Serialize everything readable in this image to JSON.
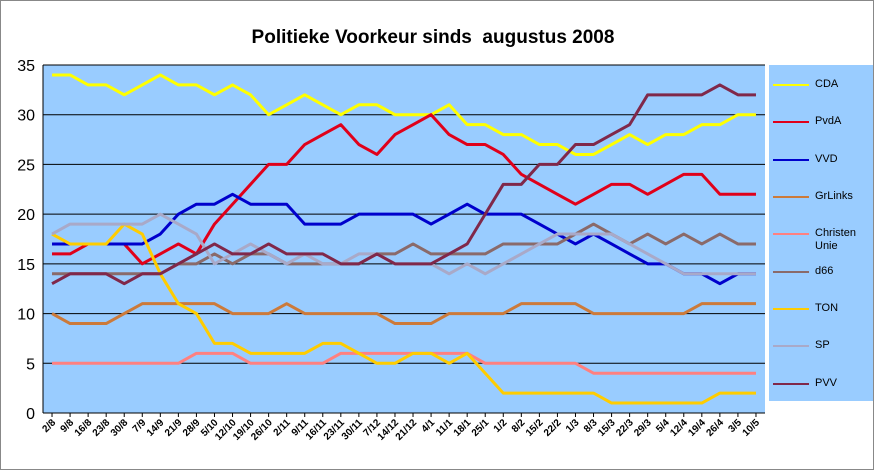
{
  "chart_data": {
    "type": "line",
    "title": "Politieke Voorkeur sinds  augustus 2008",
    "categories": [
      "2/8",
      "9/8",
      "16/8",
      "23/8",
      "30/8",
      "7/9",
      "14/9",
      "21/9",
      "28/9",
      "5/10",
      "12/10",
      "19/10",
      "26/10",
      "2/11",
      "9/11",
      "16/11",
      "23/11",
      "30/11",
      "7/12",
      "14/12",
      "21/12",
      "4/1",
      "11/1",
      "18/1",
      "25/1",
      "1/2",
      "8/2",
      "15/2",
      "22/2",
      "1/3",
      "8/3",
      "15/3",
      "22/3",
      "29/3",
      "5/4",
      "12/4",
      "19/4",
      "26/4",
      "3/5",
      "10/5"
    ],
    "series": [
      {
        "name": "CDA",
        "color": "#ffff00",
        "values": [
          34,
          34,
          33,
          33,
          32,
          33,
          34,
          33,
          33,
          32,
          33,
          32,
          30,
          31,
          32,
          31,
          30,
          31,
          31,
          30,
          30,
          30,
          31,
          29,
          29,
          28,
          28,
          27,
          27,
          26,
          26,
          27,
          28,
          27,
          28,
          28,
          29,
          29,
          30,
          30
        ]
      },
      {
        "name": "PvdA",
        "color": "#e0001a",
        "values": [
          16,
          16,
          17,
          17,
          17,
          15,
          16,
          17,
          16,
          19,
          21,
          23,
          25,
          25,
          27,
          28,
          29,
          27,
          26,
          28,
          29,
          30,
          28,
          27,
          27,
          26,
          24,
          23,
          22,
          21,
          22,
          23,
          23,
          22,
          23,
          24,
          24,
          22,
          22,
          22
        ]
      },
      {
        "name": "VVD",
        "color": "#0000cc",
        "values": [
          17,
          17,
          17,
          17,
          17,
          17,
          18,
          20,
          21,
          21,
          22,
          21,
          21,
          21,
          19,
          19,
          19,
          20,
          20,
          20,
          20,
          19,
          20,
          21,
          20,
          20,
          20,
          19,
          18,
          17,
          18,
          17,
          16,
          15,
          15,
          14,
          14,
          13,
          14,
          14
        ]
      },
      {
        "name": "GrLinks",
        "color": "#cc7a3a",
        "values": [
          10,
          9,
          9,
          9,
          10,
          11,
          11,
          11,
          11,
          11,
          10,
          10,
          10,
          11,
          10,
          10,
          10,
          10,
          10,
          9,
          9,
          9,
          10,
          10,
          10,
          10,
          11,
          11,
          11,
          11,
          10,
          10,
          10,
          10,
          10,
          10,
          11,
          11,
          11,
          11
        ]
      },
      {
        "name": "Christen Unie",
        "color": "#ff8080",
        "values": [
          5,
          5,
          5,
          5,
          5,
          5,
          5,
          5,
          6,
          6,
          6,
          5,
          5,
          5,
          5,
          5,
          6,
          6,
          6,
          6,
          6,
          6,
          6,
          6,
          5,
          5,
          5,
          5,
          5,
          5,
          4,
          4,
          4,
          4,
          4,
          4,
          4,
          4,
          4,
          4
        ]
      },
      {
        "name": "d66",
        "color": "#8a6a6a",
        "values": [
          14,
          14,
          14,
          14,
          14,
          14,
          14,
          15,
          15,
          16,
          15,
          16,
          16,
          15,
          15,
          15,
          15,
          15,
          16,
          16,
          17,
          16,
          16,
          16,
          16,
          17,
          17,
          17,
          17,
          18,
          19,
          18,
          17,
          18,
          17,
          18,
          17,
          18,
          17,
          17
        ]
      },
      {
        "name": "TON",
        "color": "#ffcc00",
        "values": [
          18,
          17,
          17,
          17,
          19,
          18,
          14,
          11,
          10,
          7,
          7,
          6,
          6,
          6,
          6,
          7,
          7,
          6,
          5,
          5,
          6,
          6,
          5,
          6,
          4,
          2,
          2,
          2,
          2,
          2,
          2,
          1,
          1,
          1,
          1,
          1,
          1,
          2,
          2,
          2
        ]
      },
      {
        "name": "SP",
        "color": "#a9a9c8",
        "values": [
          18,
          19,
          19,
          19,
          19,
          19,
          20,
          19,
          18,
          15,
          16,
          17,
          16,
          15,
          16,
          15,
          15,
          16,
          16,
          15,
          15,
          15,
          14,
          15,
          14,
          15,
          16,
          17,
          18,
          18,
          18,
          18,
          17,
          16,
          15,
          14,
          14,
          14,
          14,
          14
        ]
      },
      {
        "name": "PVV",
        "color": "#80284a",
        "values": [
          13,
          14,
          14,
          14,
          13,
          14,
          14,
          15,
          16,
          17,
          16,
          16,
          17,
          16,
          16,
          16,
          15,
          15,
          16,
          15,
          15,
          15,
          16,
          17,
          20,
          23,
          23,
          25,
          25,
          27,
          27,
          28,
          29,
          32,
          32,
          32,
          32,
          33,
          32,
          32
        ]
      }
    ],
    "ylim": [
      0,
      35
    ],
    "yticks": [
      0,
      5,
      10,
      15,
      20,
      25,
      30,
      35
    ],
    "grid": true,
    "legend": "right"
  }
}
